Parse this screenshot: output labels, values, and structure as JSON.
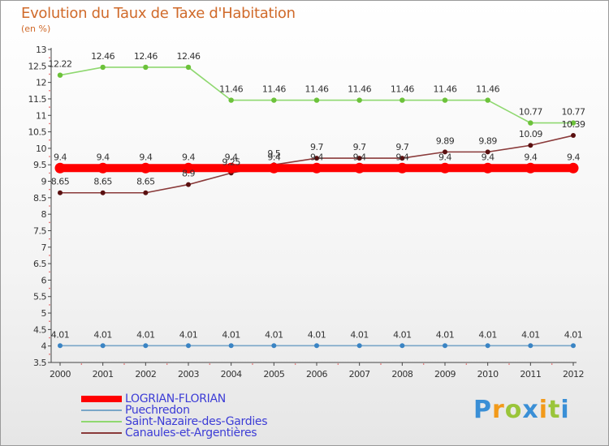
{
  "title": "Evolution du Taux de Taxe d'Habitation",
  "subtitle": "(en %)",
  "brand": {
    "letters": [
      "P",
      "r",
      "o",
      "x",
      "i",
      "t",
      "i"
    ],
    "colors": [
      "#3a8fd6",
      "#f29a1a",
      "#9ac53a",
      "#3a8fd6",
      "#f29a1a",
      "#9ac53a",
      "#3a8fd6"
    ]
  },
  "chart_data": {
    "type": "line",
    "x": [
      "2000",
      "2001",
      "2002",
      "2003",
      "2004",
      "2005",
      "2006",
      "2007",
      "2008",
      "2009",
      "2010",
      "2011",
      "2012"
    ],
    "ylim": [
      3.5,
      13
    ],
    "yticks": [
      "3.5",
      "4",
      "4.5",
      "5",
      "5.5",
      "6",
      "6.5",
      "7",
      "7.5",
      "8",
      "8.5",
      "9",
      "9.5",
      "10",
      "10.5",
      "11",
      "11.5",
      "12",
      "12.5",
      "13"
    ],
    "grid": false,
    "legend_position": "bottom-left",
    "series": [
      {
        "name": "LOGRIAN-FLORIAN",
        "color": "#ff0000",
        "values": [
          9.4,
          9.4,
          9.4,
          9.4,
          9.4,
          9.4,
          9.4,
          9.4,
          9.4,
          9.4,
          9.4,
          9.4,
          9.4
        ],
        "labels": [
          "9.4",
          "9.4",
          "9.4",
          "9.4",
          "9.4",
          "9.4",
          "9.4",
          "9.4",
          "9.4",
          "9.4",
          "9.4",
          "9.4",
          "9.4"
        ]
      },
      {
        "name": "Puechredon",
        "color": "#7aa6c8",
        "values": [
          4.01,
          4.01,
          4.01,
          4.01,
          4.01,
          4.01,
          4.01,
          4.01,
          4.01,
          4.01,
          4.01,
          4.01,
          4.01
        ],
        "labels": [
          "4.01",
          "4.01",
          "4.01",
          "4.01",
          "4.01",
          "4.01",
          "4.01",
          "4.01",
          "4.01",
          "4.01",
          "4.01",
          "4.01",
          "4.01"
        ]
      },
      {
        "name": "Saint-Nazaire-des-Gardies",
        "color": "#8fd870",
        "values": [
          12.22,
          12.46,
          12.46,
          12.46,
          11.46,
          11.46,
          11.46,
          11.46,
          11.46,
          11.46,
          11.46,
          10.77,
          10.77
        ],
        "labels": [
          "12.22",
          "12.46",
          "12.46",
          "12.46",
          "11.46",
          "11.46",
          "11.46",
          "11.46",
          "11.46",
          "11.46",
          "11.46",
          "10.77",
          "10.77"
        ]
      },
      {
        "name": "Canaules-et-Argentières",
        "color": "#8a3a3a",
        "values": [
          8.65,
          8.65,
          8.65,
          8.9,
          9.25,
          9.5,
          9.7,
          9.7,
          9.7,
          9.89,
          9.89,
          10.09,
          10.39
        ],
        "labels": [
          "8.65",
          "8.65",
          "8.65",
          "8.9",
          "9.25",
          "9.5",
          "9.7",
          "9.7",
          "9.7",
          "9.89",
          "9.89",
          "10.09",
          "10.39"
        ]
      }
    ]
  }
}
